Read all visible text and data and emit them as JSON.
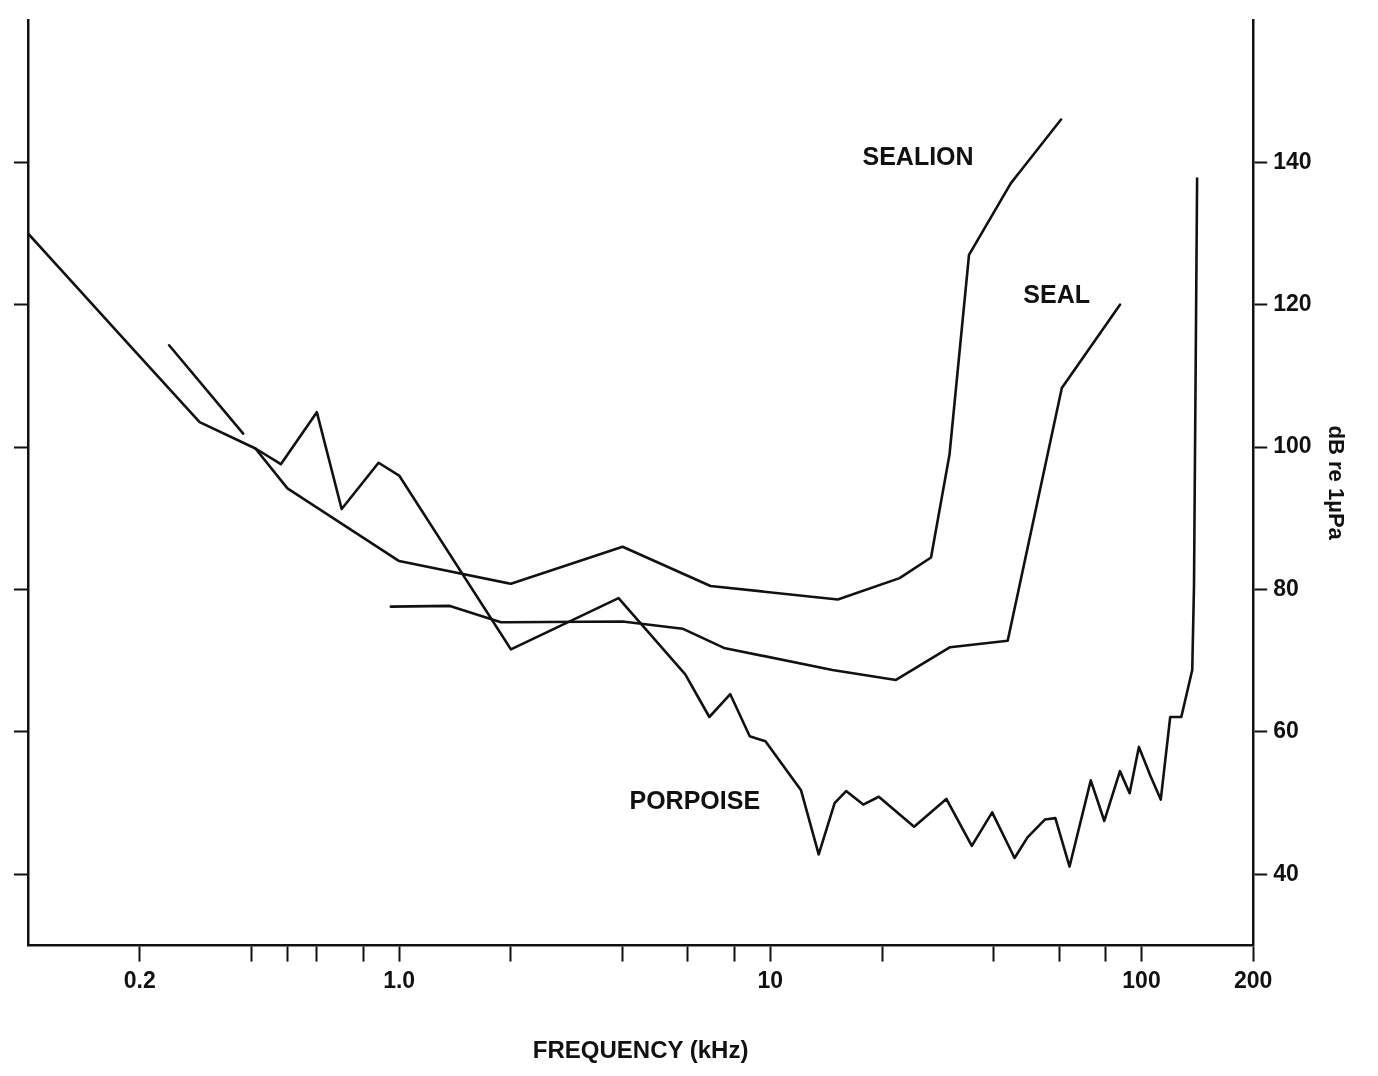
{
  "chart_data": {
    "type": "line",
    "xlabel": "FREQUENCY (kHz)",
    "y2label": "dB re 1µPa",
    "log": "x",
    "grid": false,
    "legend": false,
    "marker": "none",
    "line_style": "solid",
    "xlim": [
      0.1,
      200
    ],
    "xticks": [
      0.2,
      {
        "value": 0.4,
        "label": null
      },
      {
        "value": 0.5,
        "label": null
      },
      {
        "value": 0.6,
        "label": null
      },
      {
        "value": 0.8,
        "label": null
      },
      {
        "value": 1,
        "label": "1.0"
      },
      {
        "value": 2,
        "label": null
      },
      {
        "value": 4,
        "label": null
      },
      {
        "value": 6,
        "label": null
      },
      {
        "value": 8,
        "label": null
      },
      10,
      {
        "value": 20,
        "label": null
      },
      {
        "value": 40,
        "label": null
      },
      {
        "value": 60,
        "label": null
      },
      {
        "value": 80,
        "label": null
      },
      100,
      200
    ],
    "y2lim": [
      30,
      160
    ],
    "y2ticks": [
      40,
      60,
      80,
      100,
      120,
      140
    ],
    "series": [
      {
        "name": "SEALION",
        "color": "#111111",
        "axis": "y2",
        "x": [
          0.1,
          0.19,
          0.29,
          0.41,
          0.5,
          1.0,
          2.0,
          4.0,
          6.9,
          15.2,
          22.3,
          27.1,
          30.4,
          34.3,
          44.4,
          60.7
        ],
        "values": [
          130,
          114,
          103.5,
          99.8,
          94.2,
          84,
          80.8,
          86,
          80.5,
          78.6,
          81.6,
          84.5,
          99,
          127,
          137,
          146
        ]
      },
      {
        "name": "SEAL",
        "color": "#111111",
        "axis": "y2",
        "x": [
          0.95,
          1.37,
          1.88,
          4.0,
          5.8,
          7.5,
          14.7,
          21.8,
          30.5,
          43.6,
          61,
          87.5
        ],
        "values": [
          77.6,
          77.7,
          75.4,
          75.5,
          74.5,
          71.8,
          68.7,
          67.3,
          71.9,
          72.8,
          108.3,
          120
        ]
      },
      {
        "name": "PORPOISE",
        "color": "#111111",
        "axis": "y2",
        "x": [
          0.24,
          0.38,
          0.39,
          0.41,
          0.48,
          0.6,
          0.7,
          0.88,
          1.0,
          2.0,
          3.9,
          5.9,
          6.85,
          7.8,
          8.8,
          9.7,
          12.1,
          13.5,
          14.9,
          16,
          17.8,
          19.6,
          24.4,
          29.8,
          34.9,
          39.6,
          45.5,
          49.3,
          54.9,
          58.6,
          64,
          73,
          79.4,
          87.5,
          92.9,
          98.4,
          105.6,
          112.7,
          119.5,
          128,
          137,
          138.5,
          141.2
        ],
        "values": [
          114.3,
          101.9,
          null,
          99.8,
          97.6,
          104.9,
          91.3,
          97.8,
          96,
          71.6,
          78.8,
          68.1,
          62.1,
          65.3,
          59.4,
          58.7,
          51.8,
          42.8,
          50,
          51.7,
          49.8,
          50.9,
          46.7,
          50.6,
          44,
          48.7,
          42.3,
          45.2,
          47.7,
          47.9,
          41.1,
          53.2,
          47.5,
          54.5,
          51.4,
          57.9,
          53.9,
          50.5,
          62.1,
          62.1,
          68.7,
          80.5,
          137.7
        ]
      }
    ]
  }
}
